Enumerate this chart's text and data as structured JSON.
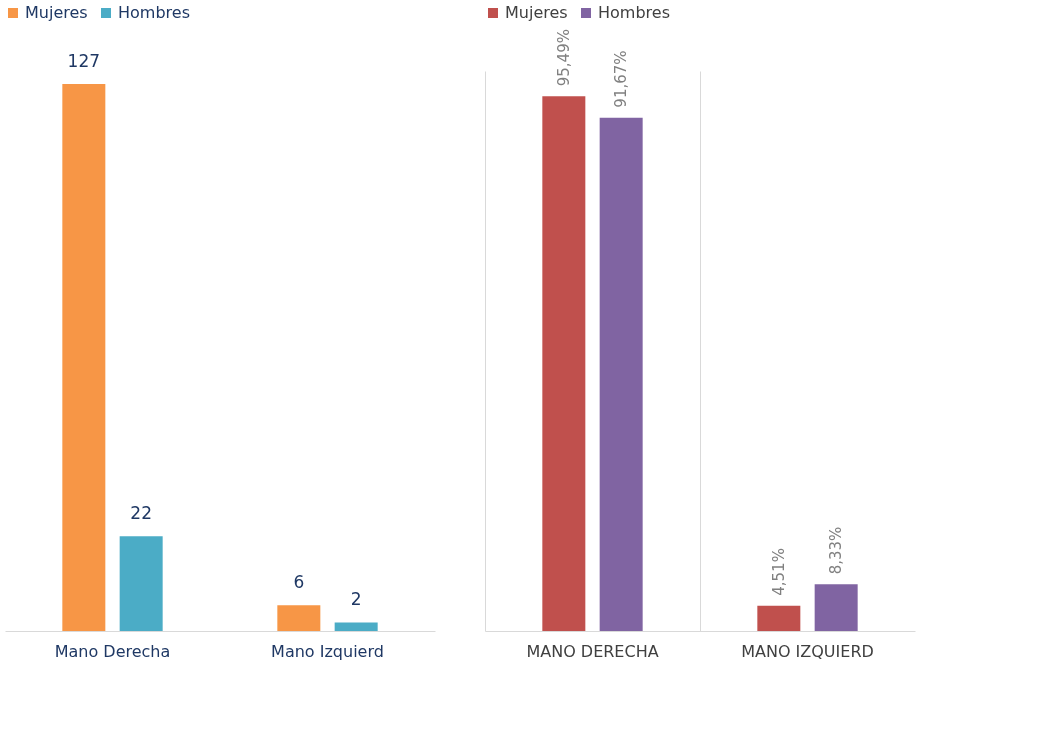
{
  "chart_data": [
    {
      "type": "bar",
      "categories": [
        "Mano Derecha",
        "Mano Izquierd"
      ],
      "series": [
        {
          "name": "Mujeres",
          "color": "#f79646",
          "values": [
            127,
            6
          ]
        },
        {
          "name": "Hombres",
          "color": "#4bacc6",
          "values": [
            22,
            2
          ]
        }
      ],
      "data_labels": true,
      "legend": "top",
      "grid": false,
      "tick_labels": "x"
    },
    {
      "type": "bar",
      "categories": [
        "MANO DERECHA",
        "MANO IZQUIERD"
      ],
      "series": [
        {
          "name": "Mujeres",
          "color": "#c0504d",
          "values": [
            95.49,
            4.51
          ],
          "value_labels": [
            "95,49%",
            "4,51%"
          ]
        },
        {
          "name": "Hombres",
          "color": "#8064a2",
          "values": [
            91.67,
            8.33
          ],
          "value_labels": [
            "91,67%",
            "8,33%"
          ]
        }
      ],
      "legend": "top",
      "grid": "x",
      "tick_labels": "x"
    }
  ]
}
